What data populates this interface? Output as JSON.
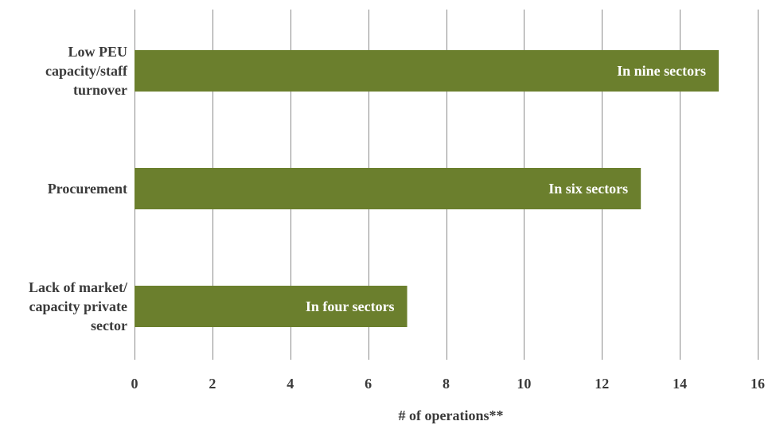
{
  "chart_data": {
    "type": "bar",
    "orientation": "horizontal",
    "categories": [
      [
        "Low PEU",
        "capacity/staff",
        "turnover"
      ],
      [
        "Procurement"
      ],
      [
        "Lack of market/",
        "capacity private",
        "sector"
      ]
    ],
    "values": [
      15,
      13,
      7
    ],
    "data_labels": [
      "In nine sectors",
      "In six sectors",
      "In four sectors"
    ],
    "xlabel": "# of operations**",
    "ylabel": "",
    "title": "",
    "xlim": [
      0,
      16
    ],
    "xticks": [
      0,
      2,
      4,
      6,
      8,
      10,
      12,
      14,
      16
    ],
    "grid": "vertical",
    "legend": "none",
    "colors": {
      "bar": "#6b7f2d",
      "grid": "#8c8c8c",
      "text": "#3a3a3a",
      "bar_text": "#ffffff"
    }
  }
}
